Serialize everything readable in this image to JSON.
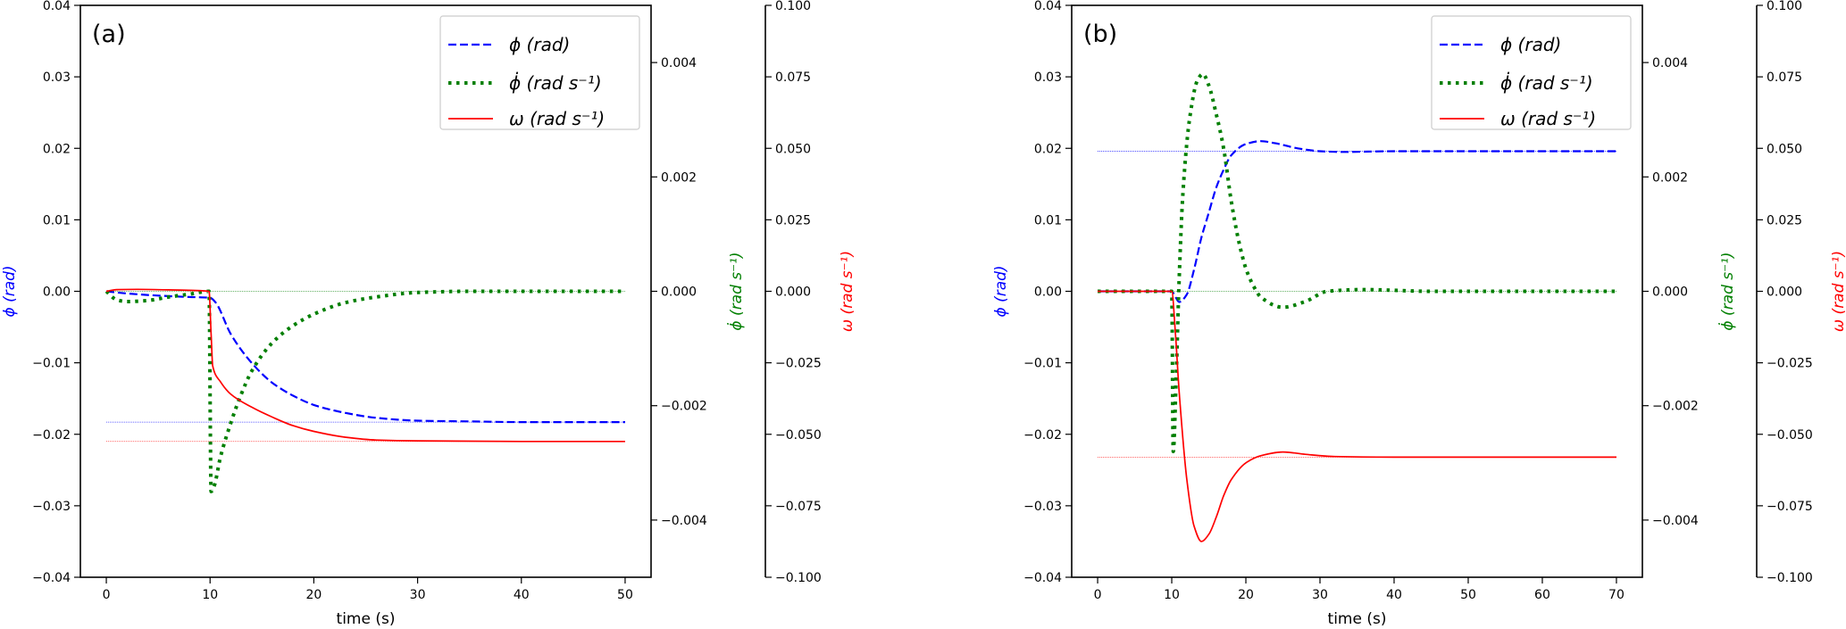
{
  "colors": {
    "phi": "#0000ff",
    "phidot": "#007f00",
    "omega": "#ff0000"
  },
  "legend": [
    "ϕ (rad)",
    "ϕ̇ (rad s⁻¹)",
    "ω (rad s⁻¹)"
  ],
  "chart_data": [
    {
      "type": "line",
      "title": "(a)",
      "xlabel": "time (s)",
      "ylabel_left": "ϕ (rad)",
      "ylabel_right1": "ϕ̇ (rad s⁻¹)",
      "ylabel_right2": "ω (rad s⁻¹)",
      "xlim": [
        -2.5,
        52.5
      ],
      "ylim_left": [
        -0.04,
        0.04
      ],
      "ylim_right1": [
        -0.005,
        0.005
      ],
      "ylim_right2": [
        -0.1,
        0.1
      ],
      "xticks": [
        0,
        10,
        20,
        30,
        40,
        50
      ],
      "xtick_labels": [
        "0",
        "10",
        "20",
        "30",
        "40",
        "50"
      ],
      "yticks_left": [
        0.04,
        0.03,
        0.02,
        0.01,
        0,
        -0.01,
        -0.02,
        -0.03,
        -0.04
      ],
      "ytick_labels_left": [
        "0.04",
        "0.03",
        "0.02",
        "0.01",
        "0.00",
        "−0.01",
        "−0.02",
        "−0.03",
        "−0.04"
      ],
      "yticks_right1": [
        0.004,
        0.002,
        0,
        -0.002,
        -0.004
      ],
      "ytick_labels_right1": [
        "0.004",
        "0.002",
        "0.000",
        "−0.002",
        "−0.004"
      ],
      "yticks_right2": [
        0.1,
        0.075,
        0.05,
        0.025,
        0,
        -0.025,
        -0.05,
        -0.075,
        -0.1
      ],
      "ytick_labels_right2": [
        "0.100",
        "0.075",
        "0.050",
        "0.025",
        "0.000",
        "−0.025",
        "−0.050",
        "−0.075",
        "−0.100"
      ],
      "legend_position": "top-right",
      "grid": false,
      "series": [
        {
          "name": "ϕ (rad)",
          "axis": "left",
          "style": "dashed",
          "points": [
            [
              0,
              0
            ],
            [
              2,
              -0.0003
            ],
            [
              5,
              -0.0006
            ],
            [
              8,
              -0.0008
            ],
            [
              10,
              -0.0009
            ],
            [
              10.5,
              -0.0015
            ],
            [
              12,
              -0.006
            ],
            [
              14,
              -0.01
            ],
            [
              16,
              -0.0128
            ],
            [
              18,
              -0.0146
            ],
            [
              20,
              -0.0159
            ],
            [
              23,
              -0.017
            ],
            [
              26,
              -0.0177
            ],
            [
              30,
              -0.0181
            ],
            [
              35,
              -0.0182
            ],
            [
              40,
              -0.0183
            ],
            [
              50,
              -0.0183
            ]
          ],
          "reference": -0.0183
        },
        {
          "name": "ϕ̇ (rad s⁻¹)",
          "axis": "right1",
          "style": "dotted",
          "points": [
            [
              0,
              0
            ],
            [
              1,
              -0.00015
            ],
            [
              2,
              -0.00018
            ],
            [
              4,
              -0.00016
            ],
            [
              6,
              -0.0001
            ],
            [
              8,
              -5e-05
            ],
            [
              9.9,
              0
            ],
            [
              10.1,
              -0.0035
            ],
            [
              10.4,
              -0.0034
            ],
            [
              11,
              -0.0029
            ],
            [
              12,
              -0.0023
            ],
            [
              13,
              -0.0018
            ],
            [
              14,
              -0.0014
            ],
            [
              16,
              -0.0009
            ],
            [
              18,
              -0.0006
            ],
            [
              20,
              -0.0004
            ],
            [
              23,
              -0.0002
            ],
            [
              26,
              -0.0001
            ],
            [
              30,
              -2e-05
            ],
            [
              35,
              0
            ],
            [
              50,
              0
            ]
          ],
          "reference": 0
        },
        {
          "name": "ω (rad s⁻¹)",
          "axis": "right2",
          "style": "solid",
          "points": [
            [
              0,
              0
            ],
            [
              1,
              0.0006
            ],
            [
              3,
              0.0007
            ],
            [
              6,
              0.0005
            ],
            [
              9.9,
              0
            ],
            [
              10.1,
              -0.015
            ],
            [
              10.25,
              -0.026
            ],
            [
              11,
              -0.0316
            ],
            [
              12,
              -0.036
            ],
            [
              14,
              -0.0405
            ],
            [
              16,
              -0.044
            ],
            [
              18,
              -0.047
            ],
            [
              20,
              -0.049
            ],
            [
              23,
              -0.051
            ],
            [
              26,
              -0.052
            ],
            [
              30,
              -0.0523
            ],
            [
              40,
              -0.0525
            ],
            [
              50,
              -0.0525
            ]
          ],
          "reference": -0.0525
        }
      ]
    },
    {
      "type": "line",
      "title": "(b)",
      "xlabel": "time (s)",
      "ylabel_left": "ϕ (rad)",
      "ylabel_right1": "ϕ̇ (rad s⁻¹)",
      "ylabel_right2": "ω (rad s⁻¹)",
      "xlim": [
        -3.5,
        73.5
      ],
      "ylim_left": [
        -0.04,
        0.04
      ],
      "ylim_right1": [
        -0.005,
        0.005
      ],
      "ylim_right2": [
        -0.1,
        0.1
      ],
      "xticks": [
        0,
        10,
        20,
        30,
        40,
        50,
        60,
        70
      ],
      "xtick_labels": [
        "0",
        "10",
        "20",
        "30",
        "40",
        "50",
        "60",
        "70"
      ],
      "yticks_left": [
        0.04,
        0.03,
        0.02,
        0.01,
        0,
        -0.01,
        -0.02,
        -0.03,
        -0.04
      ],
      "ytick_labels_left": [
        "0.04",
        "0.03",
        "0.02",
        "0.01",
        "0.00",
        "−0.01",
        "−0.02",
        "−0.03",
        "−0.04"
      ],
      "yticks_right1": [
        0.004,
        0.002,
        0,
        -0.002,
        -0.004
      ],
      "ytick_labels_right1": [
        "0.004",
        "0.002",
        "0.000",
        "−0.002",
        "−0.004"
      ],
      "yticks_right2": [
        0.1,
        0.075,
        0.05,
        0.025,
        0,
        -0.025,
        -0.05,
        -0.075,
        -0.1
      ],
      "ytick_labels_right2": [
        "0.100",
        "0.075",
        "0.050",
        "0.025",
        "0.000",
        "−0.025",
        "−0.050",
        "−0.075",
        "−0.100"
      ],
      "legend_position": "top-right",
      "grid": false,
      "series": [
        {
          "name": "ϕ (rad)",
          "axis": "left",
          "style": "dashed",
          "points": [
            [
              0,
              0
            ],
            [
              10,
              0
            ],
            [
              10.5,
              -0.0008
            ],
            [
              11,
              -0.0015
            ],
            [
              12,
              -0.0005
            ],
            [
              13,
              0.003
            ],
            [
              14,
              0.0075
            ],
            [
              15,
              0.011
            ],
            [
              16,
              0.0145
            ],
            [
              17,
              0.017
            ],
            [
              18,
              0.019
            ],
            [
              20,
              0.0206
            ],
            [
              22,
              0.021
            ],
            [
              24,
              0.0207
            ],
            [
              27,
              0.02
            ],
            [
              30,
              0.0196
            ],
            [
              33,
              0.0195
            ],
            [
              40,
              0.0196
            ],
            [
              70,
              0.0196
            ]
          ],
          "reference": 0.0196
        },
        {
          "name": "ϕ̇ (rad s⁻¹)",
          "axis": "right1",
          "style": "dotted",
          "points": [
            [
              0,
              0
            ],
            [
              10,
              0
            ],
            [
              10.2,
              -0.0028
            ],
            [
              10.6,
              -0.0015
            ],
            [
              11,
              0.0002
            ],
            [
              11.5,
              0.0017
            ],
            [
              12.5,
              0.0031
            ],
            [
              13.5,
              0.0037
            ],
            [
              14.2,
              0.0038
            ],
            [
              15,
              0.0036
            ],
            [
              16,
              0.0031
            ],
            [
              17,
              0.0025
            ],
            [
              18,
              0.0016
            ],
            [
              19,
              0.0009
            ],
            [
              20,
              0.0004
            ],
            [
              21,
              0.0001
            ],
            [
              22,
              -0.0001
            ],
            [
              25,
              -0.00028
            ],
            [
              28,
              -0.00018
            ],
            [
              31,
              0
            ],
            [
              36,
              3e-05
            ],
            [
              45,
              0
            ],
            [
              70,
              0
            ]
          ],
          "reference": 0
        },
        {
          "name": "ω (rad s⁻¹)",
          "axis": "right2",
          "style": "solid",
          "points": [
            [
              0,
              0
            ],
            [
              10,
              0
            ],
            [
              10.5,
              -0.015
            ],
            [
              11,
              -0.035
            ],
            [
              12,
              -0.065
            ],
            [
              13,
              -0.082
            ],
            [
              14,
              -0.0875
            ],
            [
              15,
              -0.085
            ],
            [
              16,
              -0.079
            ],
            [
              17,
              -0.0715
            ],
            [
              18,
              -0.066
            ],
            [
              20,
              -0.06
            ],
            [
              22,
              -0.0575
            ],
            [
              25,
              -0.0562
            ],
            [
              28,
              -0.057
            ],
            [
              32,
              -0.0578
            ],
            [
              40,
              -0.058
            ],
            [
              70,
              -0.058
            ]
          ],
          "reference": -0.058
        }
      ]
    }
  ]
}
